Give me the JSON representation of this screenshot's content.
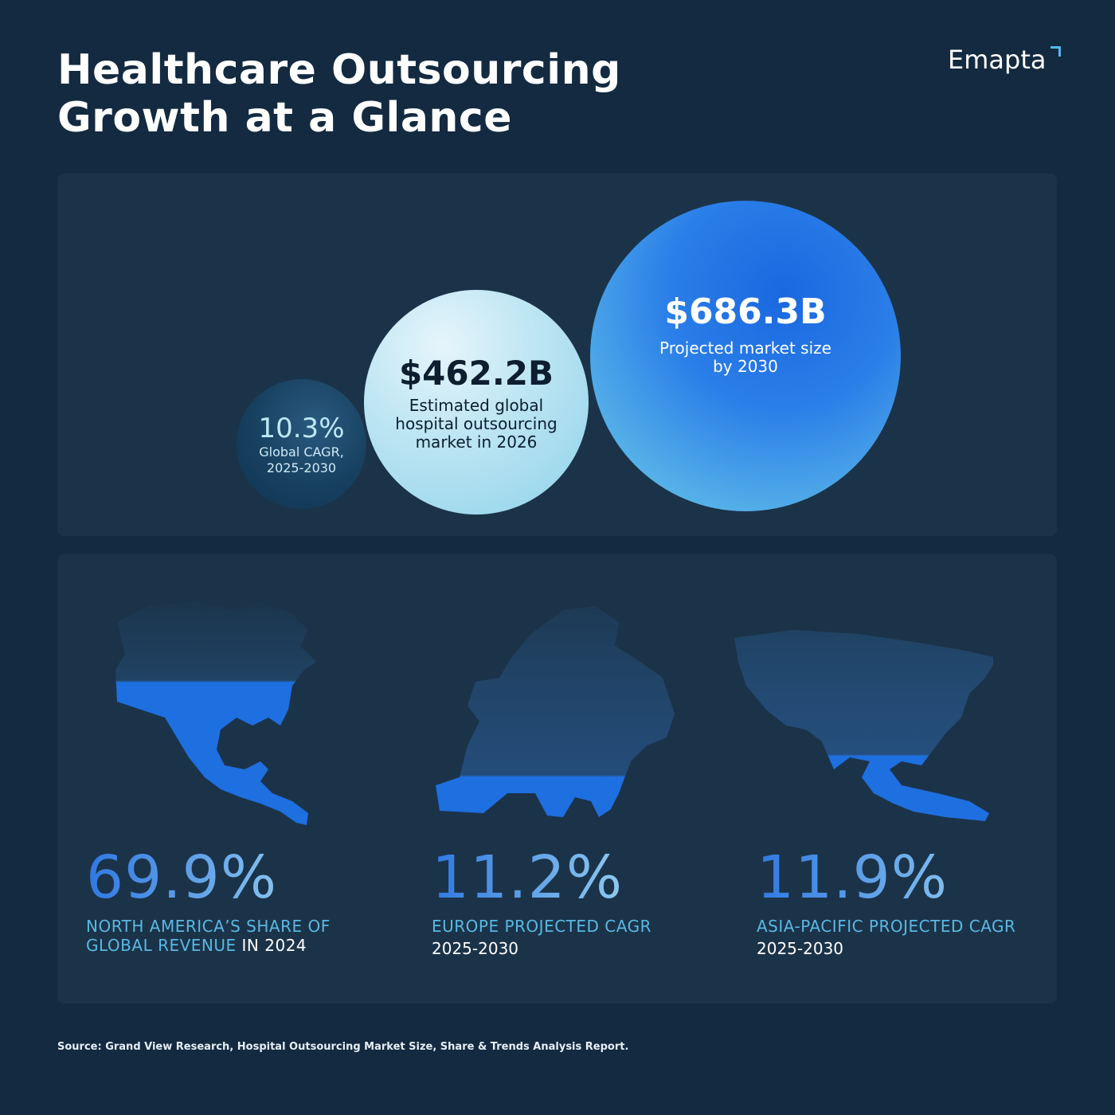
{
  "title_line1": "Healthcare Outsourcing",
  "title_line2": "Growth at a Glance",
  "brand": "Emapta",
  "bubbles": {
    "cagr": {
      "value": "10.3%",
      "label_line1": "Global CAGR,",
      "label_line2": "2025-2030"
    },
    "market_2026": {
      "value": "$462.2B",
      "label": "Estimated global hospital outsourcing market in 2026"
    },
    "market_2030": {
      "value": "$686.3B",
      "label_line1": "Projected market size",
      "label_line2": "by 2030"
    }
  },
  "stats": {
    "north_america": {
      "value": "69.9%",
      "caption_line1": "NORTH AMERICA’S SHARE OF",
      "caption_line2_accent": "GLOBAL REVENUE",
      "caption_line2_rest": " IN 2024"
    },
    "europe": {
      "value": "11.2%",
      "caption": "EUROPE PROJECTED CAGR",
      "sub": "2025-2030"
    },
    "asia_pacific": {
      "value": "11.9%",
      "caption": "ASIA-PACIFIC PROJECTED CAGR",
      "sub": "2025-2030"
    }
  },
  "colors": {
    "background": "#132a40",
    "panel": "#1b3349",
    "accent": "#2b7fe8",
    "caption": "#5ab8e3"
  },
  "source": "Source: Grand View Research, Hospital Outsourcing Market Size, Share & Trends Analysis Report."
}
